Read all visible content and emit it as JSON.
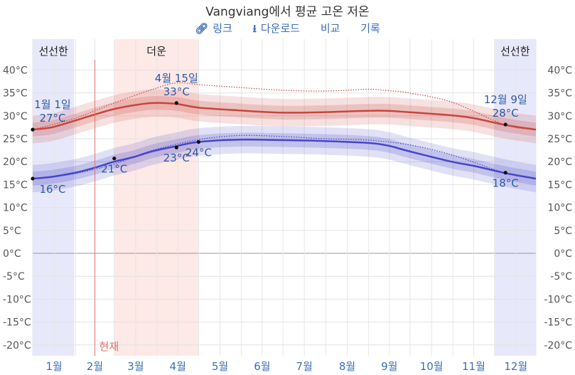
{
  "title": "Vangviang에서 평균 고온 저온",
  "toolbar": {
    "link_label": "링크",
    "download_label": "다운로드",
    "compare_label": "비교",
    "history_label": "기록"
  },
  "chart_data": {
    "type": "area",
    "title": "Vangviang에서 평균 고온 저온",
    "ylim": [
      -22,
      42
    ],
    "y_ticks": [
      40,
      35,
      30,
      25,
      20,
      15,
      10,
      5,
      0,
      -5,
      -10,
      -15,
      -20
    ],
    "y_tick_labels": [
      "40°C",
      "35°C",
      "30°C",
      "25°C",
      "20°C",
      "15°C",
      "10°C",
      "5°C",
      "0°C",
      "-5°C",
      "-10°C",
      "-15°C",
      "-20°C"
    ],
    "months": [
      "1월",
      "2월",
      "3월",
      "4월",
      "5월",
      "6월",
      "7월",
      "8월",
      "9월",
      "10월",
      "11월",
      "12월"
    ],
    "bands": [
      {
        "label": "선선한",
        "start_day": 1,
        "end_day": 31,
        "color": "#e8e8fb"
      },
      {
        "label": "더운",
        "start_day": 60,
        "end_day": 121,
        "color": "#fde9e6"
      },
      {
        "label": "선선한",
        "start_day": 335,
        "end_day": 365,
        "color": "#e8e8fb"
      }
    ],
    "now": {
      "label": "현재",
      "day": 46
    },
    "series": [
      {
        "name": "high",
        "color": "#c8453e",
        "x_day": [
          1,
          15,
          32,
          46,
          60,
          74,
          88,
          105,
          121,
          150,
          181,
          212,
          243,
          258,
          273,
          304,
          320,
          343,
          365
        ],
        "values": [
          27,
          27.5,
          29,
          30.3,
          31.5,
          32.3,
          32.8,
          32.6,
          31.8,
          31.2,
          30.7,
          30.8,
          31.1,
          31.1,
          30.8,
          30.1,
          29.5,
          28,
          27
        ],
        "band_inner": 1.5,
        "band_outer": 3
      },
      {
        "name": "low",
        "color": "#4646c8",
        "x_day": [
          1,
          15,
          32,
          46,
          60,
          74,
          88,
          105,
          121,
          150,
          181,
          212,
          243,
          258,
          273,
          304,
          320,
          343,
          365
        ],
        "values": [
          16.3,
          16.7,
          17.6,
          18.7,
          20,
          21,
          22.3,
          23.4,
          24.3,
          24.8,
          24.7,
          24.5,
          24.1,
          23.5,
          22.3,
          20,
          19.1,
          17.5,
          16.3
        ],
        "band_inner": 1.5,
        "band_outer": 3
      },
      {
        "name": "high-dotted",
        "color": "#c8453e",
        "x_day": [
          1,
          32,
          60,
          88,
          105,
          121,
          150,
          181,
          212,
          243,
          258,
          273,
          304,
          343,
          365
        ],
        "values": [
          27,
          29.5,
          32.8,
          35.8,
          37.2,
          36.8,
          36.2,
          35.6,
          35.4,
          35.8,
          35.5,
          35,
          33,
          28,
          27
        ]
      },
      {
        "name": "low-dotted",
        "color": "#4646c8",
        "x_day": [
          1,
          32,
          60,
          88,
          121,
          150,
          181,
          212,
          243,
          273,
          304,
          343,
          365
        ],
        "values": [
          16.3,
          17.4,
          19.5,
          22.5,
          24.8,
          25.7,
          25.5,
          25,
          24.7,
          23.7,
          21.5,
          17.5,
          16.3
        ]
      }
    ],
    "annotations": [
      {
        "label": "1월 1일",
        "day": 1,
        "value": 27,
        "sub": "27°C",
        "pos": "above"
      },
      {
        "label": "",
        "day": 1,
        "value": 16.3,
        "sub": "16°C",
        "pos": "below"
      },
      {
        "label": "",
        "day": 60,
        "value": 20.7,
        "sub": "21°C",
        "pos": "below"
      },
      {
        "label": "4월 15일",
        "day": 105,
        "value": 32.8,
        "sub": "33°C",
        "pos": "above"
      },
      {
        "label": "",
        "day": 105,
        "value": 23.1,
        "sub": "23°C",
        "pos": "below"
      },
      {
        "label": "",
        "day": 121,
        "value": 24.3,
        "sub": "24°C",
        "pos": "below"
      },
      {
        "label": "12월 9일",
        "day": 343,
        "value": 28.1,
        "sub": "28°C",
        "pos": "above"
      },
      {
        "label": "",
        "day": 343,
        "value": 17.6,
        "sub": "18°C",
        "pos": "below"
      }
    ]
  }
}
